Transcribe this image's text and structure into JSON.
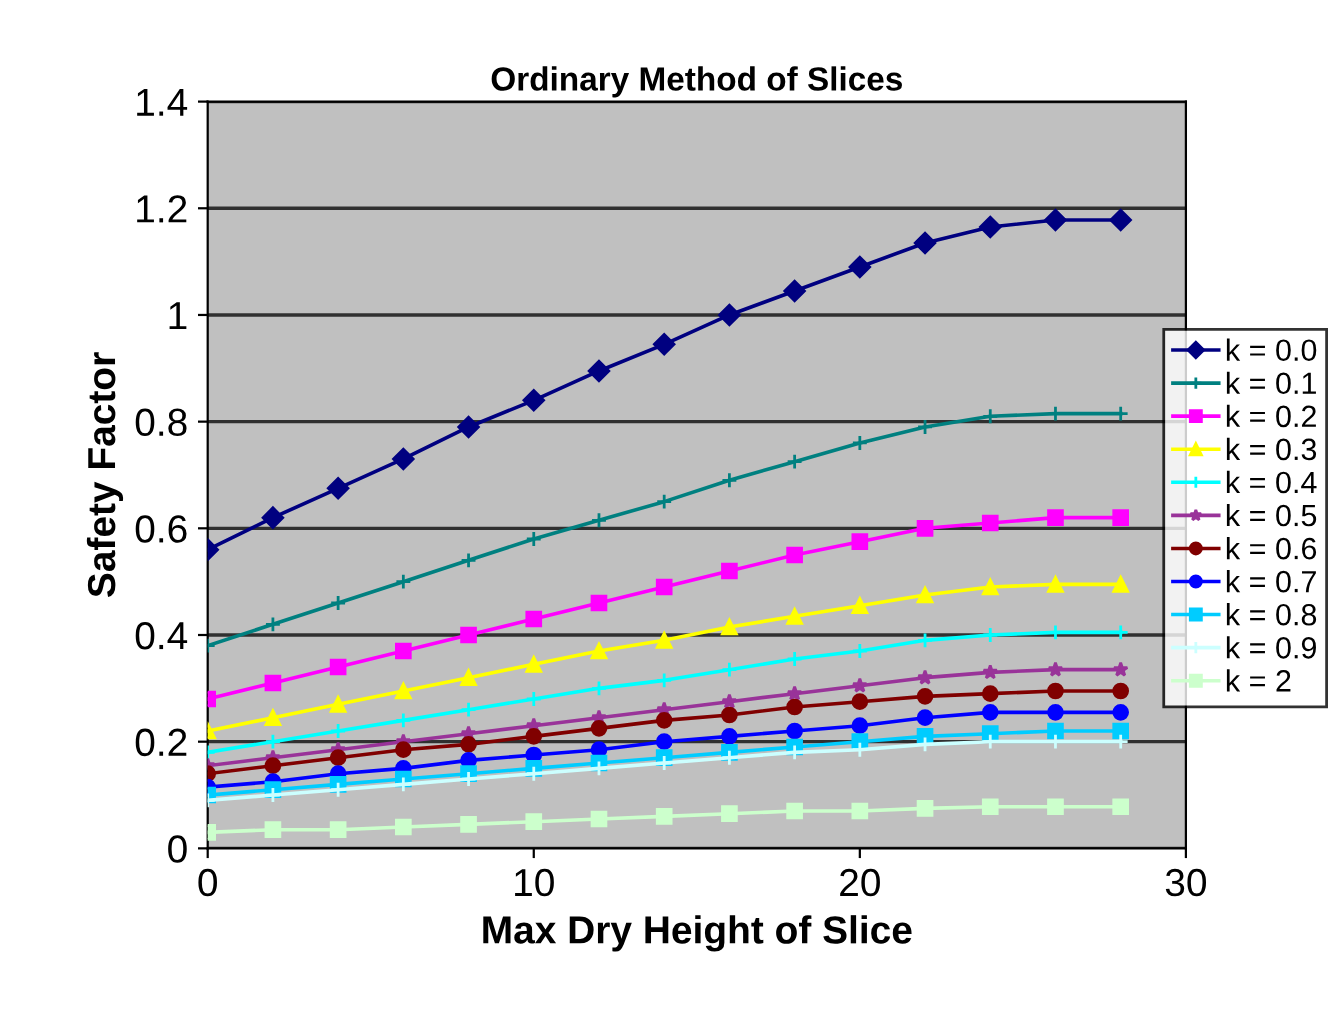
{
  "chart_data": {
    "type": "line",
    "title": "Ordinary Method of Slices",
    "xlabel": "Max Dry Height of Slice",
    "ylabel": "Safety Factor",
    "x": [
      0,
      2,
      4,
      6,
      8,
      10,
      12,
      14,
      16,
      18,
      20,
      22,
      24,
      26,
      28
    ],
    "xlim": [
      0,
      30
    ],
    "xticks": [
      0,
      10,
      20,
      30
    ],
    "ylim": [
      0,
      1.4
    ],
    "yticks": [
      0,
      0.2,
      0.4,
      0.6,
      0.8,
      1,
      1.2,
      1.4
    ],
    "grid": "y",
    "legend": "right",
    "series": [
      {
        "name": "k = 0.0",
        "color": "#000080",
        "marker": "diamond",
        "values": [
          0.56,
          0.62,
          0.675,
          0.73,
          0.79,
          0.84,
          0.895,
          0.945,
          1.0,
          1.045,
          1.09,
          1.135,
          1.165,
          1.178,
          1.178
        ]
      },
      {
        "name": "k = 0.1",
        "color": "#008080",
        "marker": "cross",
        "values": [
          0.38,
          0.42,
          0.46,
          0.5,
          0.54,
          0.58,
          0.615,
          0.65,
          0.69,
          0.725,
          0.76,
          0.79,
          0.81,
          0.815,
          0.815
        ]
      },
      {
        "name": "k = 0.2",
        "color": "#ff00ff",
        "marker": "square",
        "values": [
          0.28,
          0.31,
          0.34,
          0.37,
          0.4,
          0.43,
          0.46,
          0.49,
          0.52,
          0.55,
          0.575,
          0.6,
          0.61,
          0.62,
          0.62
        ]
      },
      {
        "name": "k = 0.3",
        "color": "#ffff00",
        "marker": "triangle",
        "values": [
          0.22,
          0.245,
          0.27,
          0.295,
          0.32,
          0.345,
          0.37,
          0.39,
          0.415,
          0.435,
          0.455,
          0.475,
          0.49,
          0.495,
          0.495
        ]
      },
      {
        "name": "k = 0.4",
        "color": "#00ffff",
        "marker": "cross",
        "values": [
          0.18,
          0.2,
          0.22,
          0.24,
          0.26,
          0.28,
          0.3,
          0.315,
          0.335,
          0.355,
          0.37,
          0.39,
          0.4,
          0.405,
          0.405
        ]
      },
      {
        "name": "k = 0.5",
        "color": "#993399",
        "marker": "star",
        "values": [
          0.155,
          0.17,
          0.185,
          0.2,
          0.215,
          0.23,
          0.245,
          0.26,
          0.275,
          0.29,
          0.305,
          0.32,
          0.33,
          0.335,
          0.335
        ]
      },
      {
        "name": "k = 0.6",
        "color": "#800000",
        "marker": "circle",
        "values": [
          0.14,
          0.155,
          0.17,
          0.185,
          0.195,
          0.21,
          0.225,
          0.24,
          0.25,
          0.265,
          0.275,
          0.285,
          0.29,
          0.295,
          0.295
        ]
      },
      {
        "name": "k = 0.7",
        "color": "#0000ff",
        "marker": "circle",
        "values": [
          0.115,
          0.125,
          0.14,
          0.15,
          0.165,
          0.175,
          0.185,
          0.2,
          0.21,
          0.22,
          0.23,
          0.245,
          0.255,
          0.255,
          0.255
        ]
      },
      {
        "name": "k = 0.8",
        "color": "#00ccff",
        "marker": "square",
        "values": [
          0.1,
          0.11,
          0.12,
          0.13,
          0.14,
          0.15,
          0.16,
          0.17,
          0.18,
          0.19,
          0.2,
          0.21,
          0.215,
          0.22,
          0.22
        ]
      },
      {
        "name": "k = 0.9",
        "color": "#ccffff",
        "marker": "cross",
        "values": [
          0.09,
          0.1,
          0.11,
          0.12,
          0.13,
          0.14,
          0.15,
          0.16,
          0.17,
          0.18,
          0.185,
          0.195,
          0.2,
          0.2,
          0.2
        ]
      },
      {
        "name": "k = 2",
        "color": "#ccffcc",
        "marker": "square",
        "values": [
          0.03,
          0.035,
          0.035,
          0.04,
          0.045,
          0.05,
          0.055,
          0.06,
          0.065,
          0.07,
          0.07,
          0.075,
          0.078,
          0.078,
          0.078
        ]
      }
    ]
  }
}
